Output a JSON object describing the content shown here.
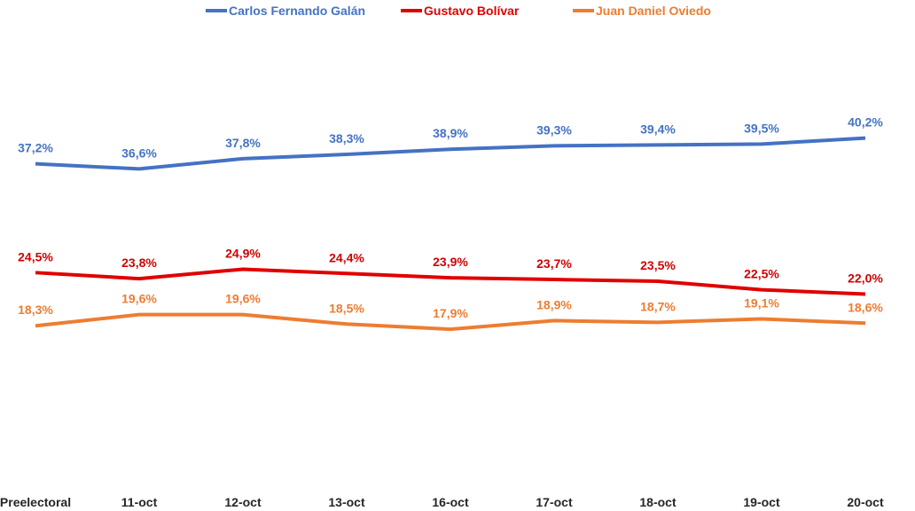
{
  "chart_data": {
    "type": "line",
    "title": "",
    "xlabel": "",
    "ylabel": "",
    "ylim": [
      0,
      56
    ],
    "grid": false,
    "legend_position": "top",
    "categories": [
      "Preelectoral",
      "11-oct",
      "12-oct",
      "13-oct",
      "16-oct",
      "17-oct",
      "18-oct",
      "19-oct",
      "20-oct"
    ],
    "series": [
      {
        "name": "Carlos Fernando Galán",
        "color": "#4472C4",
        "values": [
          37.2,
          36.6,
          37.8,
          38.3,
          38.9,
          39.3,
          39.4,
          39.5,
          40.2
        ],
        "labels": [
          "37,2%",
          "36,6%",
          "37,8%",
          "38,3%",
          "38,9%",
          "39,3%",
          "39,4%",
          "39,5%",
          "40,2%"
        ]
      },
      {
        "name": "Gustavo Bolívar",
        "color": "#E00000",
        "values": [
          24.5,
          23.8,
          24.9,
          24.4,
          23.9,
          23.7,
          23.5,
          22.5,
          22.0
        ],
        "labels": [
          "24,5%",
          "23,8%",
          "24,9%",
          "24,4%",
          "23,9%",
          "23,7%",
          "23,5%",
          "22,5%",
          "22,0%"
        ]
      },
      {
        "name": "Juan Daniel Oviedo",
        "color": "#ED7D31",
        "values": [
          18.3,
          19.6,
          19.6,
          18.5,
          17.9,
          18.9,
          18.7,
          19.1,
          18.6
        ],
        "labels": [
          "18,3%",
          "19,6%",
          "19,6%",
          "18,5%",
          "17,9%",
          "18,9%",
          "18,7%",
          "19,1%",
          "18,6%"
        ]
      }
    ]
  }
}
